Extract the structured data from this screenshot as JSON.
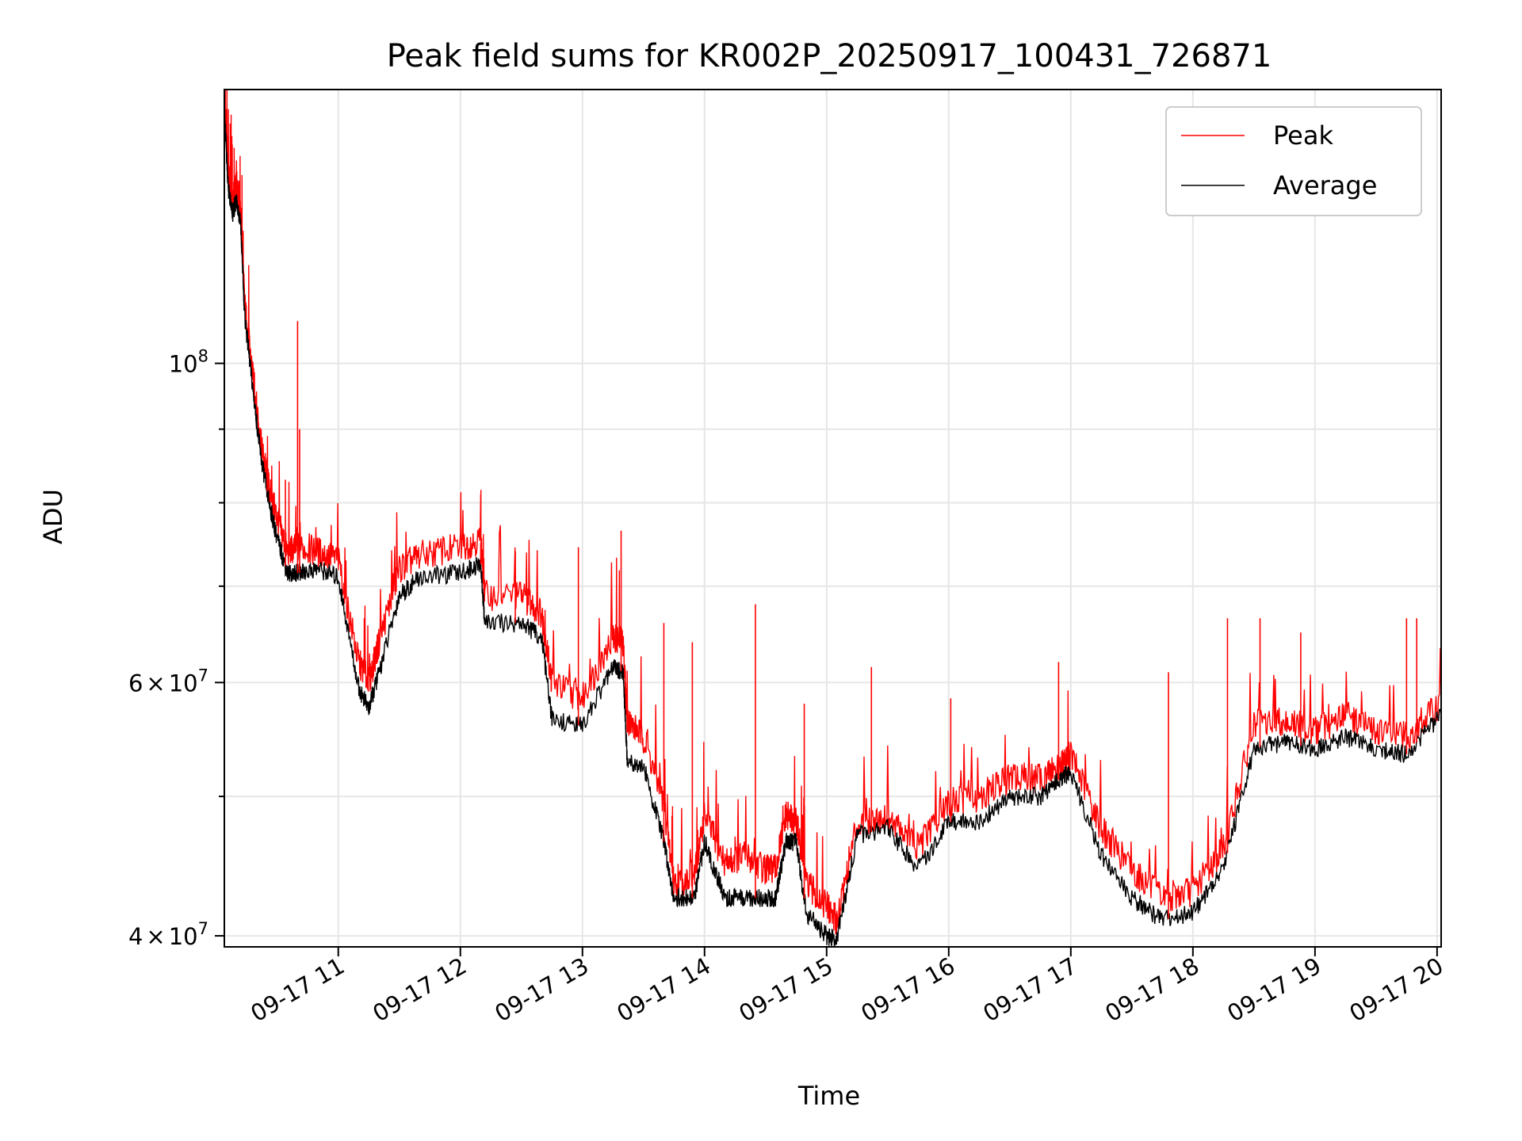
{
  "chart_data": {
    "type": "line",
    "title": "Peak field sums for KR002P_20250917_100431_726871",
    "xlabel": "Time",
    "ylabel": "ADU",
    "xlim": [
      "2025-09-17 10:04",
      "2025-09-17 20:02"
    ],
    "ylim": [
      39300000,
      155000000
    ],
    "yscale": "log",
    "grid": true,
    "legend_position": "top-right",
    "x_ticks": [
      "09-17 11",
      "09-17 12",
      "09-17 13",
      "09-17 14",
      "09-17 15",
      "09-17 16",
      "09-17 17",
      "09-17 18",
      "09-17 19",
      "09-17 20"
    ],
    "y_ticks_major": [
      {
        "value": 100000000,
        "base": "10",
        "exp": "8"
      },
      {
        "value": 60000000,
        "mant": "6",
        "base": "10",
        "exp": "7"
      },
      {
        "value": 40000000,
        "mant": "4",
        "base": "10",
        "exp": "7"
      }
    ],
    "y_ticks_minor": [
      50000000,
      70000000,
      80000000,
      90000000
    ],
    "x": [
      "2025-09-17 10:04",
      "2025-09-17 10:06",
      "2025-09-17 10:08",
      "2025-09-17 10:10",
      "2025-09-17 10:12",
      "2025-09-17 10:14",
      "2025-09-17 10:18",
      "2025-09-17 10:22",
      "2025-09-17 10:26",
      "2025-09-17 10:30",
      "2025-09-17 10:35",
      "2025-09-17 10:40",
      "2025-09-17 10:50",
      "2025-09-17 11:00",
      "2025-09-17 11:10",
      "2025-09-17 11:15",
      "2025-09-17 11:20",
      "2025-09-17 11:30",
      "2025-09-17 11:40",
      "2025-09-17 12:00",
      "2025-09-17 12:10",
      "2025-09-17 12:12",
      "2025-09-17 12:30",
      "2025-09-17 12:40",
      "2025-09-17 12:45",
      "2025-09-17 13:00",
      "2025-09-17 13:15",
      "2025-09-17 13:20",
      "2025-09-17 13:22",
      "2025-09-17 13:30",
      "2025-09-17 13:40",
      "2025-09-17 13:45",
      "2025-09-17 13:55",
      "2025-09-17 14:00",
      "2025-09-17 14:10",
      "2025-09-17 14:20",
      "2025-09-17 14:30",
      "2025-09-17 14:35",
      "2025-09-17 14:40",
      "2025-09-17 14:45",
      "2025-09-17 14:50",
      "2025-09-17 15:00",
      "2025-09-17 15:05",
      "2025-09-17 15:15",
      "2025-09-17 15:30",
      "2025-09-17 15:45",
      "2025-09-17 16:00",
      "2025-09-17 16:15",
      "2025-09-17 16:30",
      "2025-09-17 16:45",
      "2025-09-17 16:55",
      "2025-09-17 17:00",
      "2025-09-17 17:15",
      "2025-09-17 17:30",
      "2025-09-17 17:45",
      "2025-09-17 18:00",
      "2025-09-17 18:15",
      "2025-09-17 18:30",
      "2025-09-17 18:45",
      "2025-09-17 19:00",
      "2025-09-17 19:15",
      "2025-09-17 19:30",
      "2025-09-17 19:45",
      "2025-09-17 20:02"
    ],
    "series": [
      {
        "name": "Peak",
        "color": "#ff0000",
        "values": [
          155000000,
          135000000,
          130000000,
          133000000,
          128000000,
          110000000,
          98000000,
          88000000,
          82000000,
          78000000,
          74000000,
          74500000,
          74000000,
          73000000,
          62000000,
          60000000,
          64000000,
          72000000,
          73500000,
          74500000,
          75500000,
          69000000,
          69000000,
          67000000,
          60000000,
          58500000,
          64500000,
          64000000,
          56500000,
          55000000,
          49500000,
          43500000,
          44000000,
          48500000,
          45000000,
          45500000,
          44500000,
          44500000,
          48500000,
          48000000,
          43500000,
          42000000,
          41000000,
          48000000,
          48500000,
          46000000,
          49500000,
          50000000,
          51500000,
          51500000,
          52500000,
          53500000,
          47500000,
          44500000,
          42500000,
          43000000,
          46000000,
          56000000,
          56500000,
          55500000,
          57000000,
          55500000,
          55000000,
          58000000
        ]
      },
      {
        "name": "Average",
        "color": "#000000",
        "values": [
          150000000,
          132000000,
          127000000,
          130000000,
          125000000,
          108000000,
          96000000,
          86000000,
          80000000,
          75500000,
          71500000,
          71500000,
          72000000,
          71000000,
          59500000,
          57500000,
          61000000,
          69000000,
          71000000,
          71500000,
          72500000,
          66000000,
          66000000,
          64500000,
          56500000,
          56000000,
          61500000,
          61000000,
          53000000,
          52500000,
          46500000,
          42500000,
          42500000,
          46500000,
          42500000,
          42500000,
          42500000,
          42500000,
          46500000,
          46500000,
          41500000,
          40000000,
          39800000,
          47000000,
          47500000,
          44500000,
          48000000,
          48000000,
          50000000,
          50000000,
          51500000,
          52000000,
          45500000,
          42500000,
          41000000,
          41500000,
          44500000,
          54000000,
          54500000,
          54000000,
          55000000,
          54000000,
          53500000,
          57000000
        ]
      }
    ],
    "peak_spikes": [
      {
        "x": "2025-09-17 10:40",
        "value": 107000000
      },
      {
        "x": "2025-09-17 10:41",
        "value": 90000000
      },
      {
        "x": "2025-09-17 10:25",
        "value": 86000000
      },
      {
        "x": "2025-09-17 10:34",
        "value": 83000000
      },
      {
        "x": "2025-09-17 12:10",
        "value": 75000000
      },
      {
        "x": "2025-09-17 12:27",
        "value": 74000000
      },
      {
        "x": "2025-09-17 12:58",
        "value": 74500000
      },
      {
        "x": "2025-09-17 13:19",
        "value": 76500000
      },
      {
        "x": "2025-09-17 13:40",
        "value": 66000000
      },
      {
        "x": "2025-09-17 13:54",
        "value": 64000000
      },
      {
        "x": "2025-09-17 14:25",
        "value": 68000000
      },
      {
        "x": "2025-09-17 14:49",
        "value": 58000000
      },
      {
        "x": "2025-09-17 15:22",
        "value": 61500000
      },
      {
        "x": "2025-09-17 16:01",
        "value": 58500000
      },
      {
        "x": "2025-09-17 16:54",
        "value": 62000000
      },
      {
        "x": "2025-09-17 17:48",
        "value": 61000000
      },
      {
        "x": "2025-09-17 18:17",
        "value": 66500000
      },
      {
        "x": "2025-09-17 18:33",
        "value": 66500000
      },
      {
        "x": "2025-09-17 18:53",
        "value": 65000000
      },
      {
        "x": "2025-09-17 19:45",
        "value": 66500000
      },
      {
        "x": "2025-09-17 19:50",
        "value": 66500000
      },
      {
        "x": "2025-09-17 20:02",
        "value": 72500000
      }
    ]
  }
}
